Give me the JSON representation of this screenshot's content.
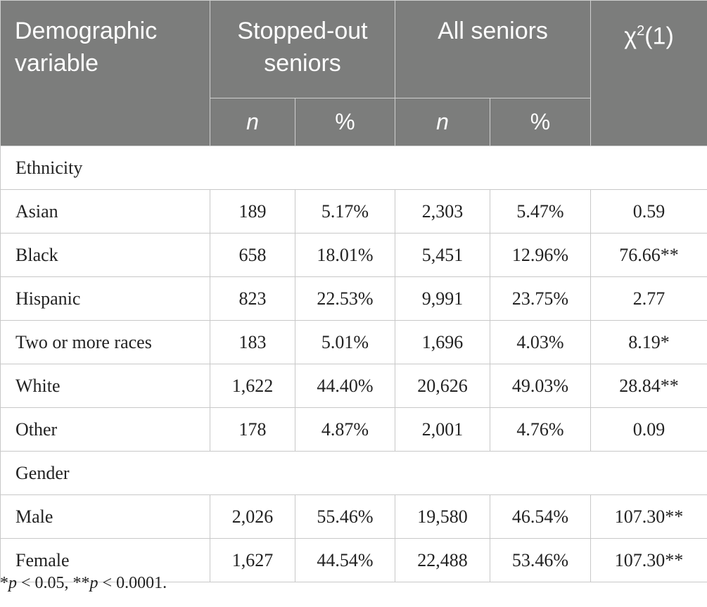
{
  "header": {
    "demographic_line1": "Demographic",
    "demographic_line2": "variable",
    "stopped_line1": "Stopped-out",
    "stopped_line2": "seniors",
    "all_seniors": "All seniors",
    "chi_symbol": "χ",
    "chi_sup": "2",
    "chi_df": "(1)",
    "sub_n": "n",
    "sub_pct": "%"
  },
  "sections": [
    {
      "title": "Ethnicity",
      "rows": [
        {
          "label": "Asian",
          "so_n": "189",
          "so_pct": "5.17%",
          "all_n": "2,303",
          "all_pct": "5.47%",
          "chi": "0.59"
        },
        {
          "label": "Black",
          "so_n": "658",
          "so_pct": "18.01%",
          "all_n": "5,451",
          "all_pct": "12.96%",
          "chi": "76.66**"
        },
        {
          "label": "Hispanic",
          "so_n": "823",
          "so_pct": "22.53%",
          "all_n": "9,991",
          "all_pct": "23.75%",
          "chi": "2.77"
        },
        {
          "label": "Two or more races",
          "so_n": "183",
          "so_pct": "5.01%",
          "all_n": "1,696",
          "all_pct": "4.03%",
          "chi": "8.19*"
        },
        {
          "label": "White",
          "so_n": "1,622",
          "so_pct": "44.40%",
          "all_n": "20,626",
          "all_pct": "49.03%",
          "chi": "28.84**"
        },
        {
          "label": "Other",
          "so_n": "178",
          "so_pct": "4.87%",
          "all_n": "2,001",
          "all_pct": "4.76%",
          "chi": "0.09"
        }
      ]
    },
    {
      "title": "Gender",
      "rows": [
        {
          "label": "Male",
          "so_n": "2,026",
          "so_pct": "55.46%",
          "all_n": "19,580",
          "all_pct": "46.54%",
          "chi": "107.30**"
        },
        {
          "label": "Female",
          "so_n": "1,627",
          "so_pct": "44.54%",
          "all_n": "22,488",
          "all_pct": "53.46%",
          "chi": "107.30**"
        }
      ]
    }
  ],
  "footnote": {
    "star1": "*",
    "p1": "p",
    "t1": " < 0.05, ",
    "star2": "**",
    "p2": "p",
    "t2": " < 0.0001."
  }
}
